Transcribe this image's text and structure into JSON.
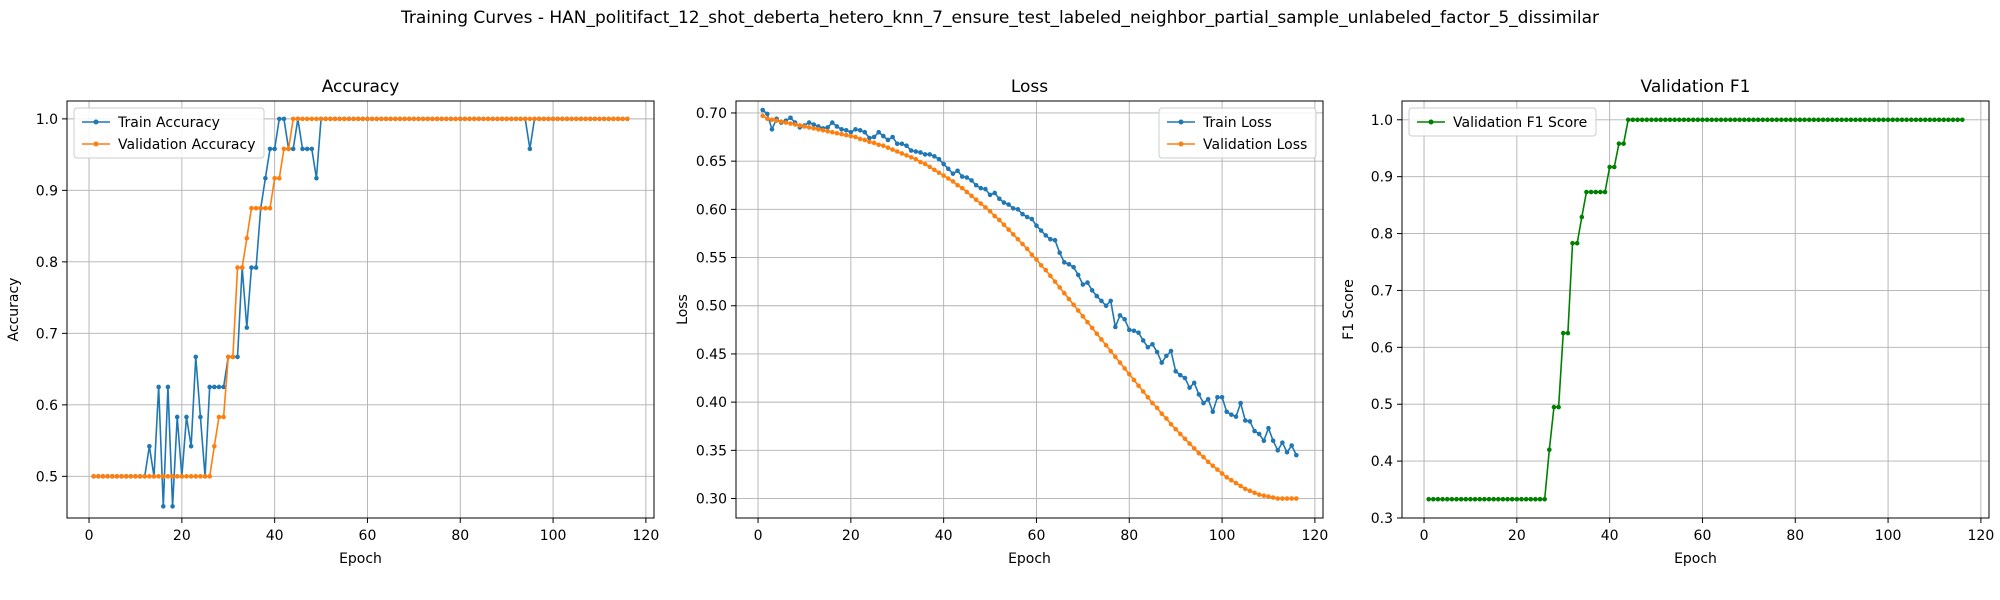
{
  "figure": {
    "suptitle": "Training Curves - HAN_politifact_12_shot_deberta_hetero_knn_7_ensure_test_labeled_neighbor_partial_sample_unlabeled_factor_5_dissimilar"
  },
  "chart_data": [
    {
      "type": "line",
      "title": "Accuracy",
      "xlabel": "Epoch",
      "ylabel": "Accuracy",
      "xlim": [
        -4.75,
        121.75
      ],
      "ylim": [
        0.4417,
        1.025
      ],
      "xticks": [
        0,
        20,
        40,
        60,
        80,
        100,
        120
      ],
      "yticks": [
        0.5,
        0.6,
        0.7,
        0.8,
        0.9,
        1.0
      ],
      "grid": true,
      "legend_loc": "upper left",
      "series": [
        {
          "name": "Train Accuracy",
          "color": "#1f77b4",
          "x_start": 1,
          "values": [
            0.5,
            0.5,
            0.5,
            0.5,
            0.5,
            0.5,
            0.5,
            0.5,
            0.5,
            0.5,
            0.5,
            0.5,
            0.542,
            0.5,
            0.625,
            0.458,
            0.625,
            0.458,
            0.583,
            0.5,
            0.583,
            0.542,
            0.667,
            0.583,
            0.5,
            0.625,
            0.625,
            0.625,
            0.625,
            0.667,
            0.667,
            0.667,
            0.792,
            0.708,
            0.792,
            0.792,
            0.875,
            0.917,
            0.958,
            0.958,
            1.0,
            1.0,
            0.958,
            0.958,
            1.0,
            0.958,
            0.958,
            0.958,
            0.917,
            1.0,
            1.0,
            1.0,
            1.0,
            1.0,
            1.0,
            1.0,
            1.0,
            1.0,
            1.0,
            1.0,
            1.0,
            1.0,
            1.0,
            1.0,
            1.0,
            1.0,
            1.0,
            1.0,
            1.0,
            1.0,
            1.0,
            1.0,
            1.0,
            1.0,
            1.0,
            1.0,
            1.0,
            1.0,
            1.0,
            1.0,
            1.0,
            1.0,
            1.0,
            1.0,
            1.0,
            1.0,
            1.0,
            1.0,
            1.0,
            1.0,
            1.0,
            1.0,
            1.0,
            1.0,
            0.958,
            1.0,
            1.0,
            1.0,
            1.0,
            1.0,
            1.0,
            1.0,
            1.0,
            1.0,
            1.0,
            1.0,
            1.0,
            1.0,
            1.0,
            1.0,
            1.0,
            1.0,
            1.0,
            1.0,
            1.0,
            1.0
          ]
        },
        {
          "name": "Validation Accuracy",
          "color": "#ff7f0e",
          "x_start": 1,
          "values": [
            0.5,
            0.5,
            0.5,
            0.5,
            0.5,
            0.5,
            0.5,
            0.5,
            0.5,
            0.5,
            0.5,
            0.5,
            0.5,
            0.5,
            0.5,
            0.5,
            0.5,
            0.5,
            0.5,
            0.5,
            0.5,
            0.5,
            0.5,
            0.5,
            0.5,
            0.5,
            0.542,
            0.583,
            0.583,
            0.667,
            0.667,
            0.792,
            0.792,
            0.833,
            0.875,
            0.875,
            0.875,
            0.875,
            0.875,
            0.917,
            0.917,
            0.958,
            0.958,
            1.0,
            1.0,
            1.0,
            1.0,
            1.0,
            1.0,
            1.0,
            1.0,
            1.0,
            1.0,
            1.0,
            1.0,
            1.0,
            1.0,
            1.0,
            1.0,
            1.0,
            1.0,
            1.0,
            1.0,
            1.0,
            1.0,
            1.0,
            1.0,
            1.0,
            1.0,
            1.0,
            1.0,
            1.0,
            1.0,
            1.0,
            1.0,
            1.0,
            1.0,
            1.0,
            1.0,
            1.0,
            1.0,
            1.0,
            1.0,
            1.0,
            1.0,
            1.0,
            1.0,
            1.0,
            1.0,
            1.0,
            1.0,
            1.0,
            1.0,
            1.0,
            1.0,
            1.0,
            1.0,
            1.0,
            1.0,
            1.0,
            1.0,
            1.0,
            1.0,
            1.0,
            1.0,
            1.0,
            1.0,
            1.0,
            1.0,
            1.0,
            1.0,
            1.0,
            1.0,
            1.0,
            1.0,
            1.0
          ]
        }
      ]
    },
    {
      "type": "line",
      "title": "Loss",
      "xlabel": "Epoch",
      "ylabel": "Loss",
      "xlim": [
        -4.75,
        121.75
      ],
      "ylim": [
        0.2798,
        0.7124
      ],
      "xticks": [
        0,
        20,
        40,
        60,
        80,
        100,
        120
      ],
      "yticks": [
        0.3,
        0.35,
        0.4,
        0.45,
        0.5,
        0.55,
        0.6,
        0.65,
        0.7
      ],
      "ytick_labels": [
        "0.30",
        "0.35",
        "0.40",
        "0.45",
        "0.50",
        "0.55",
        "0.60",
        "0.65",
        "0.70"
      ],
      "grid": true,
      "legend_loc": "upper right",
      "series": [
        {
          "name": "Train Loss",
          "color": "#1f77b4",
          "x_start": 1,
          "values": [
            0.703,
            0.699,
            0.683,
            0.694,
            0.69,
            0.692,
            0.695,
            0.69,
            0.685,
            0.687,
            0.69,
            0.688,
            0.686,
            0.684,
            0.685,
            0.69,
            0.686,
            0.683,
            0.682,
            0.68,
            0.683,
            0.682,
            0.68,
            0.674,
            0.675,
            0.68,
            0.676,
            0.672,
            0.675,
            0.668,
            0.668,
            0.666,
            0.661,
            0.66,
            0.659,
            0.657,
            0.657,
            0.655,
            0.652,
            0.647,
            0.642,
            0.637,
            0.64,
            0.634,
            0.633,
            0.63,
            0.625,
            0.622,
            0.621,
            0.615,
            0.617,
            0.611,
            0.607,
            0.605,
            0.601,
            0.6,
            0.595,
            0.592,
            0.59,
            0.583,
            0.578,
            0.573,
            0.569,
            0.568,
            0.555,
            0.545,
            0.543,
            0.54,
            0.532,
            0.522,
            0.524,
            0.516,
            0.51,
            0.505,
            0.5,
            0.505,
            0.478,
            0.49,
            0.486,
            0.475,
            0.474,
            0.472,
            0.464,
            0.457,
            0.46,
            0.452,
            0.441,
            0.448,
            0.453,
            0.432,
            0.428,
            0.425,
            0.415,
            0.42,
            0.408,
            0.399,
            0.403,
            0.39,
            0.405,
            0.405,
            0.39,
            0.387,
            0.385,
            0.399,
            0.381,
            0.38,
            0.37,
            0.367,
            0.36,
            0.373,
            0.36,
            0.35,
            0.358,
            0.348,
            0.355,
            0.345
          ]
        },
        {
          "name": "Validation Loss",
          "color": "#ff7f0e",
          "x_start": 1,
          "values": [
            0.697,
            0.694,
            0.693,
            0.692,
            0.691,
            0.69,
            0.689,
            0.688,
            0.687,
            0.686,
            0.685,
            0.684,
            0.683,
            0.682,
            0.681,
            0.68,
            0.679,
            0.678,
            0.677,
            0.676,
            0.675,
            0.673,
            0.672,
            0.67,
            0.669,
            0.667,
            0.666,
            0.664,
            0.662,
            0.66,
            0.658,
            0.656,
            0.654,
            0.652,
            0.649,
            0.647,
            0.644,
            0.641,
            0.638,
            0.635,
            0.632,
            0.629,
            0.625,
            0.622,
            0.618,
            0.614,
            0.61,
            0.606,
            0.602,
            0.598,
            0.593,
            0.589,
            0.584,
            0.579,
            0.574,
            0.569,
            0.564,
            0.559,
            0.553,
            0.548,
            0.542,
            0.537,
            0.531,
            0.525,
            0.519,
            0.513,
            0.507,
            0.501,
            0.495,
            0.489,
            0.483,
            0.477,
            0.471,
            0.465,
            0.459,
            0.453,
            0.447,
            0.441,
            0.435,
            0.429,
            0.423,
            0.417,
            0.411,
            0.405,
            0.399,
            0.394,
            0.388,
            0.383,
            0.377,
            0.372,
            0.367,
            0.362,
            0.357,
            0.352,
            0.347,
            0.343,
            0.338,
            0.334,
            0.33,
            0.326,
            0.322,
            0.319,
            0.316,
            0.313,
            0.31,
            0.308,
            0.306,
            0.304,
            0.303,
            0.302,
            0.301,
            0.3,
            0.3,
            0.3,
            0.3,
            0.3
          ]
        }
      ]
    },
    {
      "type": "line",
      "title": "Validation F1",
      "xlabel": "Epoch",
      "ylabel": "F1 Score",
      "xlim": [
        -4.75,
        121.75
      ],
      "ylim": [
        0.3,
        1.033
      ],
      "xticks": [
        0,
        20,
        40,
        60,
        80,
        100,
        120
      ],
      "yticks": [
        0.3,
        0.4,
        0.5,
        0.6,
        0.7,
        0.8,
        0.9,
        1.0
      ],
      "grid": true,
      "legend_loc": "upper left",
      "series": [
        {
          "name": "Validation F1 Score",
          "color": "#008000",
          "x_start": 1,
          "values": [
            0.333,
            0.333,
            0.333,
            0.333,
            0.333,
            0.333,
            0.333,
            0.333,
            0.333,
            0.333,
            0.333,
            0.333,
            0.333,
            0.333,
            0.333,
            0.333,
            0.333,
            0.333,
            0.333,
            0.333,
            0.333,
            0.333,
            0.333,
            0.333,
            0.333,
            0.333,
            0.42,
            0.495,
            0.495,
            0.625,
            0.625,
            0.783,
            0.783,
            0.829,
            0.873,
            0.873,
            0.873,
            0.873,
            0.873,
            0.917,
            0.917,
            0.958,
            0.958,
            1.0,
            1.0,
            1.0,
            1.0,
            1.0,
            1.0,
            1.0,
            1.0,
            1.0,
            1.0,
            1.0,
            1.0,
            1.0,
            1.0,
            1.0,
            1.0,
            1.0,
            1.0,
            1.0,
            1.0,
            1.0,
            1.0,
            1.0,
            1.0,
            1.0,
            1.0,
            1.0,
            1.0,
            1.0,
            1.0,
            1.0,
            1.0,
            1.0,
            1.0,
            1.0,
            1.0,
            1.0,
            1.0,
            1.0,
            1.0,
            1.0,
            1.0,
            1.0,
            1.0,
            1.0,
            1.0,
            1.0,
            1.0,
            1.0,
            1.0,
            1.0,
            1.0,
            1.0,
            1.0,
            1.0,
            1.0,
            1.0,
            1.0,
            1.0,
            1.0,
            1.0,
            1.0,
            1.0,
            1.0,
            1.0,
            1.0,
            1.0,
            1.0,
            1.0,
            1.0,
            1.0,
            1.0,
            1.0
          ]
        }
      ]
    }
  ]
}
